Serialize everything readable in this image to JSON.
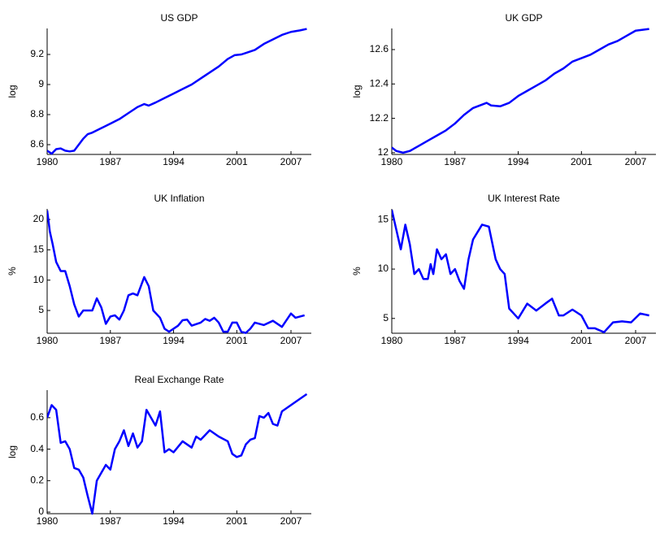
{
  "chart_data": [
    {
      "type": "line",
      "title": "US GDP",
      "ylabel": "log",
      "color": "#0000ff",
      "x": [
        1980,
        1980.5,
        1981,
        1981.5,
        1982,
        1982.5,
        1983,
        1983.5,
        1984,
        1984.5,
        1985,
        1986,
        1987,
        1988,
        1989,
        1990,
        1990.75,
        1991.25,
        1992,
        1993,
        1994,
        1995,
        1996,
        1997,
        1998,
        1999,
        2000,
        2000.75,
        2001.5,
        2002,
        2003,
        2004,
        2005,
        2006,
        2007,
        2008,
        2008.75
      ],
      "values": [
        8.56,
        8.54,
        8.57,
        8.575,
        8.56,
        8.555,
        8.56,
        8.6,
        8.64,
        8.67,
        8.68,
        8.71,
        8.74,
        8.77,
        8.81,
        8.85,
        8.87,
        8.86,
        8.88,
        8.91,
        8.94,
        8.97,
        9.0,
        9.04,
        9.08,
        9.12,
        9.17,
        9.195,
        9.2,
        9.21,
        9.23,
        9.27,
        9.3,
        9.33,
        9.35,
        9.36,
        9.37
      ],
      "xlim": [
        1980,
        2009.25
      ],
      "xticks": [
        1980,
        1987,
        1994,
        2001,
        2007
      ],
      "ylim": [
        8.535,
        9.373
      ],
      "yticks": [
        8.6,
        8.8,
        9,
        9.2
      ]
    },
    {
      "type": "line",
      "title": "UK GDP",
      "ylabel": "log",
      "color": "#0000ff",
      "x": [
        1980,
        1980.5,
        1981.25,
        1982,
        1983,
        1984,
        1985,
        1986,
        1987,
        1988,
        1989,
        1990,
        1990.5,
        1991,
        1992,
        1993,
        1994,
        1995,
        1996,
        1997,
        1998,
        1999,
        2000,
        2001,
        2002,
        2003,
        2004,
        2005,
        2006,
        2007,
        2008.5
      ],
      "values": [
        12.03,
        12.01,
        12.0,
        12.01,
        12.04,
        12.07,
        12.1,
        12.13,
        12.17,
        12.22,
        12.26,
        12.28,
        12.29,
        12.275,
        12.27,
        12.29,
        12.33,
        12.36,
        12.39,
        12.42,
        12.46,
        12.49,
        12.53,
        12.55,
        12.57,
        12.6,
        12.63,
        12.65,
        12.68,
        12.71,
        12.72
      ],
      "xlim": [
        1980,
        2009.25
      ],
      "xticks": [
        1980,
        1987,
        1994,
        2001,
        2007
      ],
      "ylim": [
        11.99,
        12.723
      ],
      "yticks": [
        12,
        12.2,
        12.4,
        12.6
      ]
    },
    {
      "type": "line",
      "title": "UK Inflation",
      "ylabel": "%",
      "color": "#0000ff",
      "x": [
        1980,
        1980.3,
        1980.6,
        1981,
        1981.5,
        1982,
        1982.5,
        1983,
        1983.5,
        1984,
        1984.5,
        1985,
        1985.5,
        1986,
        1986.5,
        1987,
        1987.5,
        1988,
        1988.5,
        1989,
        1989.5,
        1990,
        1990.75,
        1991.25,
        1991.75,
        1992.5,
        1993,
        1993.5,
        1994,
        1994.5,
        1995,
        1995.5,
        1996,
        1997,
        1997.5,
        1998,
        1998.5,
        1999,
        1999.5,
        2000,
        2000.5,
        2001,
        2001.5,
        2002,
        2002.5,
        2003,
        2004,
        2005,
        2006,
        2007,
        2007.5,
        2008.5
      ],
      "values": [
        21.5,
        18,
        16,
        13,
        11.5,
        11.5,
        9,
        6,
        4,
        5,
        5,
        5,
        7,
        5.5,
        2.8,
        4,
        4.2,
        3.5,
        5,
        7.5,
        7.8,
        7.5,
        10.5,
        9,
        5,
        3.8,
        2,
        1.5,
        2,
        2.5,
        3.4,
        3.5,
        2.5,
        3,
        3.6,
        3.3,
        3.8,
        3,
        1.5,
        1.5,
        3,
        3,
        1.5,
        1.3,
        2,
        3,
        2.6,
        3.3,
        2.3,
        4.5,
        3.8,
        4.2
      ],
      "xlim": [
        1980,
        2009.25
      ],
      "xticks": [
        1980,
        1987,
        1994,
        2001,
        2007
      ],
      "ylim": [
        1.25,
        21.74
      ],
      "yticks": [
        5,
        10,
        15,
        20
      ]
    },
    {
      "type": "line",
      "title": "UK Interest Rate",
      "ylabel": "%",
      "color": "#0000ff",
      "x": [
        1980,
        1980.5,
        1981,
        1981.5,
        1982,
        1982.5,
        1983,
        1983.5,
        1984,
        1984.3,
        1984.6,
        1985,
        1985.5,
        1986,
        1986.5,
        1987,
        1987.5,
        1988,
        1988.5,
        1989,
        1990,
        1990.75,
        1991.5,
        1992,
        1992.5,
        1993,
        1994,
        1995,
        1996,
        1997,
        1997.75,
        1998.5,
        1999,
        2000,
        2001,
        2001.75,
        2002.5,
        2003.5,
        2004.5,
        2005.5,
        2006.5,
        2007.5,
        2008.5
      ],
      "values": [
        16,
        14,
        12,
        14.5,
        12.5,
        9.5,
        10,
        9,
        9,
        10.5,
        9.5,
        12,
        11,
        11.5,
        9.5,
        10,
        8.8,
        8,
        11,
        13,
        14.5,
        14.3,
        11,
        10,
        9.5,
        6,
        5,
        6.5,
        5.8,
        6.5,
        7,
        5.3,
        5.3,
        5.9,
        5.3,
        4,
        4,
        3.6,
        4.6,
        4.7,
        4.6,
        5.5,
        5.3
      ],
      "xlim": [
        1980,
        2009.25
      ],
      "xticks": [
        1980,
        1987,
        1994,
        2001,
        2007
      ],
      "ylim": [
        3.5,
        16.1
      ],
      "yticks": [
        5,
        10,
        15
      ]
    },
    {
      "type": "line",
      "title": "Real Exchange Rate",
      "ylabel": "log",
      "color": "#0000ff",
      "x": [
        1980,
        1980.5,
        1981,
        1981.5,
        1982,
        1982.5,
        1983,
        1983.5,
        1984,
        1984.5,
        1985,
        1985.5,
        1986,
        1986.5,
        1987,
        1987.5,
        1988,
        1988.5,
        1989,
        1989.5,
        1990,
        1990.5,
        1991,
        1991.5,
        1992,
        1992.5,
        1993,
        1993.5,
        1994,
        1995,
        1996,
        1996.5,
        1997,
        1998,
        1999,
        2000,
        2000.5,
        2001,
        2001.5,
        2002,
        2002.5,
        2003,
        2003.5,
        2004,
        2004.5,
        2005,
        2005.5,
        2006,
        2007,
        2008,
        2008.75
      ],
      "values": [
        0.6,
        0.68,
        0.65,
        0.44,
        0.45,
        0.4,
        0.28,
        0.27,
        0.22,
        0.1,
        -0.01,
        0.2,
        0.25,
        0.3,
        0.27,
        0.4,
        0.45,
        0.52,
        0.42,
        0.5,
        0.41,
        0.45,
        0.65,
        0.6,
        0.55,
        0.64,
        0.38,
        0.4,
        0.38,
        0.45,
        0.41,
        0.48,
        0.46,
        0.52,
        0.48,
        0.45,
        0.37,
        0.35,
        0.36,
        0.43,
        0.46,
        0.47,
        0.61,
        0.6,
        0.63,
        0.56,
        0.55,
        0.64,
        0.68,
        0.72,
        0.75
      ],
      "xlim": [
        1980,
        2009.25
      ],
      "xticks": [
        1980,
        1987,
        1994,
        2001,
        2007
      ],
      "ylim": [
        -0.01,
        0.775
      ],
      "yticks": [
        0,
        0.2,
        0.4,
        0.6
      ]
    }
  ]
}
